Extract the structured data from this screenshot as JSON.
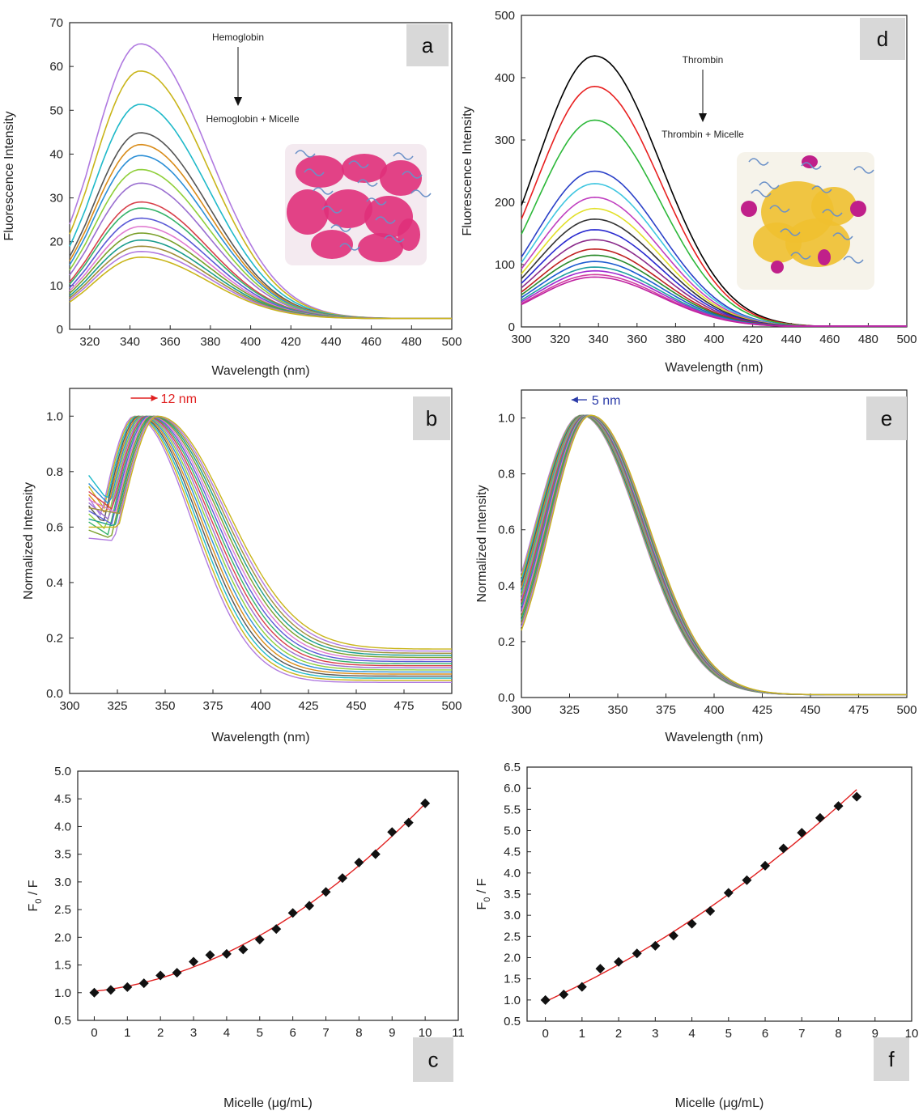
{
  "panel_letters": [
    "a",
    "d",
    "b",
    "e",
    "c",
    "f"
  ],
  "colors": {
    "hb_cycle": [
      "#b07ae0",
      "#c9b51a",
      "#1fb9c9",
      "#555555",
      "#d98c1a",
      "#2c8fd6",
      "#8fcf3a",
      "#9a6fd0",
      "#d8404a",
      "#36b36a",
      "#5a5ad6",
      "#e07ad0",
      "#7aa02a",
      "#1a9c8c",
      "#a08f3a"
    ],
    "th_curves": [
      "#000000",
      "#e82020",
      "#2db83a",
      "#2a40c8",
      "#3fc6e0",
      "#c040c0",
      "#e2e02a",
      "#333333",
      "#2a2ad0",
      "#8a2a8a",
      "#c02020",
      "#2a8a2a",
      "#1a5ad0",
      "#20a0a0",
      "#a02ad0",
      "#d040a0",
      "#c020a0"
    ],
    "fit_line": "#e02020",
    "markers": "#111111",
    "shift_b": "#e02020",
    "shift_e": "#2a3aa8"
  },
  "chart_data": [
    {
      "id": "a",
      "type": "line",
      "xlabel": "Wavelength (nm)",
      "ylabel": "Fluorescence Intensity",
      "xlim": [
        310,
        500
      ],
      "ylim": [
        0,
        70
      ],
      "xticks": [
        320,
        340,
        360,
        380,
        400,
        420,
        440,
        460,
        480,
        500
      ],
      "yticks": [
        0,
        10,
        20,
        30,
        40,
        50,
        60,
        70
      ],
      "annotation_top": "Hemoglobin",
      "annotation_bottom": "Hemoglobin + Micelle",
      "peak_x": 345,
      "peaks": [
        64.5,
        58.3,
        50.7,
        44.2,
        41.5,
        39,
        35.8,
        32.7,
        28.4,
        27,
        24.7,
        22.8,
        21.3,
        19.7,
        18.3,
        17.1,
        15.8
      ],
      "tail_at_500": 2.5,
      "grid": false
    },
    {
      "id": "d",
      "type": "line",
      "xlabel": "Wavelength (nm)",
      "ylabel": "Fluorescence Intensity",
      "xlim": [
        300,
        500
      ],
      "ylim": [
        0,
        500
      ],
      "xticks": [
        300,
        320,
        340,
        360,
        380,
        400,
        420,
        440,
        460,
        480,
        500
      ],
      "yticks": [
        0,
        100,
        200,
        300,
        400,
        500
      ],
      "annotation_top": "Thrombin",
      "annotation_bottom": "Thrombin + Micelle",
      "peak_x": 338,
      "peaks": [
        435,
        386,
        332,
        250,
        230,
        208,
        190,
        173,
        156,
        140,
        125,
        115,
        105,
        96,
        90,
        84,
        80
      ],
      "grid": false
    },
    {
      "id": "b",
      "type": "line",
      "xlabel": "Wavelength (nm)",
      "ylabel": "Normalized Intensity",
      "xlim": [
        300,
        500
      ],
      "ylim": [
        0,
        1.1
      ],
      "xticks": [
        300,
        325,
        350,
        375,
        400,
        425,
        450,
        475,
        500
      ],
      "yticks": [
        0.0,
        0.2,
        0.4,
        0.6,
        0.8,
        1.0
      ],
      "ytick_labels": [
        "0.0",
        "0.2",
        "0.4",
        "0.6",
        "0.8",
        "1.0"
      ],
      "shift_label": "12 nm",
      "peak_range": [
        334,
        346
      ],
      "series_count": 17,
      "grid": false
    },
    {
      "id": "e",
      "type": "line",
      "xlabel": "Wavelength (nm)",
      "ylabel": "Normalized Intensity",
      "xlim": [
        300,
        500
      ],
      "ylim": [
        0,
        1.1
      ],
      "xticks": [
        300,
        325,
        350,
        375,
        400,
        425,
        450,
        475,
        500
      ],
      "yticks": [
        0.0,
        0.2,
        0.4,
        0.6,
        0.8,
        1.0
      ],
      "ytick_labels": [
        "0.0",
        "0.2",
        "0.4",
        "0.6",
        "0.8",
        "1.0"
      ],
      "shift_label": "5 nm",
      "peak_range": [
        331,
        336
      ],
      "series_count": 17,
      "grid": false
    },
    {
      "id": "c",
      "type": "scatter",
      "xlabel": "Micelle (μg/mL)",
      "ylabel_main": "F",
      "ylabel_sub": "0",
      "ylabel_tail": " / F",
      "xlim": [
        -0.5,
        11
      ],
      "ylim": [
        0.5,
        5.0
      ],
      "xticks": [
        0,
        1,
        2,
        3,
        4,
        5,
        6,
        7,
        8,
        9,
        10,
        11
      ],
      "yticks": [
        0.5,
        1.0,
        1.5,
        2.0,
        2.5,
        3.0,
        3.5,
        4.0,
        4.5,
        5.0
      ],
      "ytick_labels": [
        "0.5",
        "1.0",
        "1.5",
        "2.0",
        "2.5",
        "3.0",
        "3.5",
        "4.0",
        "4.5",
        "5.0"
      ],
      "x": [
        0,
        0.5,
        1,
        1.5,
        2,
        2.5,
        3,
        3.5,
        4,
        4.5,
        5,
        5.5,
        6,
        6.5,
        7,
        7.5,
        8,
        8.5,
        9,
        9.5,
        10
      ],
      "y": [
        1.0,
        1.05,
        1.1,
        1.17,
        1.31,
        1.36,
        1.56,
        1.68,
        1.7,
        1.78,
        1.96,
        2.15,
        2.44,
        2.57,
        2.82,
        3.07,
        3.35,
        3.5,
        3.9,
        4.07,
        4.42
      ],
      "fit": "quadratic",
      "grid": false
    },
    {
      "id": "f",
      "type": "scatter",
      "xlabel": "Micelle (μg/mL)",
      "ylabel_main": "F",
      "ylabel_sub": "0",
      "ylabel_tail": " / F",
      "xlim": [
        -0.5,
        10
      ],
      "ylim": [
        0.5,
        6.5
      ],
      "xticks": [
        0,
        1,
        2,
        3,
        4,
        5,
        6,
        7,
        8,
        9,
        10
      ],
      "yticks": [
        0.5,
        1.0,
        1.5,
        2.0,
        2.5,
        3.0,
        3.5,
        4.0,
        4.5,
        5.0,
        5.5,
        6.0,
        6.5
      ],
      "ytick_labels": [
        "0.5",
        "1.0",
        "1.5",
        "2.0",
        "2.5",
        "3.0",
        "3.5",
        "4.0",
        "4.5",
        "5.0",
        "5.5",
        "6.0",
        "6.5"
      ],
      "x": [
        0,
        0.5,
        1,
        1.5,
        2,
        2.5,
        3,
        3.5,
        4,
        4.5,
        5,
        5.5,
        6,
        6.5,
        7,
        7.5,
        8,
        8.5
      ],
      "y": [
        1.0,
        1.13,
        1.31,
        1.74,
        1.9,
        2.1,
        2.28,
        2.52,
        2.8,
        3.1,
        3.53,
        3.83,
        4.17,
        4.58,
        4.95,
        5.3,
        5.58,
        5.8
      ],
      "fit": "quadratic",
      "grid": false
    }
  ]
}
